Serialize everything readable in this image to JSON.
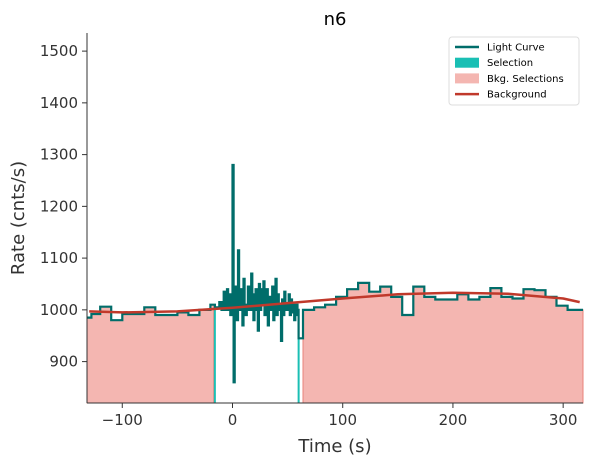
{
  "chart_data": {
    "type": "line",
    "title": "n6",
    "xlabel": "Time (s)",
    "ylabel": "Rate (cnts/s)",
    "xlim": [
      -132,
      318
    ],
    "ylim": [
      820,
      1535
    ],
    "xticks": [
      -100,
      0,
      100,
      200,
      300
    ],
    "xtick_labels": [
      "−100",
      "0",
      "100",
      "200",
      "300"
    ],
    "yticks": [
      900,
      1000,
      1100,
      1200,
      1300,
      1400,
      1500
    ],
    "ytick_labels": [
      "900",
      "1000",
      "1100",
      "1200",
      "1300",
      "1400",
      "1500"
    ],
    "grid": false,
    "legend_position": "top-right",
    "legend": [
      {
        "label": "Light Curve",
        "kind": "line",
        "color": "#006d6a"
      },
      {
        "label": "Selection",
        "kind": "patch",
        "color": "#1abfb4"
      },
      {
        "label": "Bkg. Selections",
        "kind": "patch",
        "color": "#f4b6b1"
      },
      {
        "label": "Background",
        "kind": "line",
        "color": "#c0392b"
      }
    ],
    "colors": {
      "light_curve": "#006d6a",
      "selection": "#1abfb4",
      "bkg_fill": "#f4b6b1",
      "bkg_edge": "#e8837a",
      "background": "#c0392b"
    },
    "light_curve": {
      "x": [
        -132,
        -128,
        -120,
        -110,
        -100,
        -90,
        -80,
        -70,
        -60,
        -50,
        -40,
        -30,
        -20,
        -16,
        -12,
        -10,
        -8,
        -6,
        -5,
        -4,
        -3,
        -2,
        -1,
        0,
        1,
        2,
        3,
        4,
        5,
        6,
        7,
        8,
        9,
        10,
        11,
        12,
        13,
        14,
        15,
        16,
        17,
        18,
        19,
        20,
        21,
        22,
        23,
        24,
        25,
        26,
        27,
        28,
        29,
        30,
        31,
        32,
        33,
        34,
        35,
        36,
        37,
        38,
        39,
        40,
        41,
        42,
        43,
        44,
        45,
        46,
        47,
        48,
        49,
        50,
        51,
        52,
        53,
        54,
        55,
        56,
        57,
        58,
        59,
        60,
        64,
        74,
        84,
        94,
        104,
        114,
        124,
        134,
        144,
        154,
        164,
        174,
        184,
        194,
        204,
        214,
        224,
        234,
        244,
        254,
        264,
        274,
        284,
        294,
        304,
        314,
        318
      ],
      "y": [
        985,
        992,
        1006,
        980,
        992,
        992,
        1005,
        990,
        990,
        995,
        990,
        1000,
        1010,
        1005,
        1015,
        1000,
        1035,
        1000,
        1040,
        1000,
        1030,
        990,
        1010,
        1280,
        860,
        990,
        1045,
        980,
        1115,
        1010,
        1000,
        1040,
        970,
        1060,
        1010,
        990,
        1000,
        1045,
        1020,
        1000,
        1070,
        1030,
        980,
        1020,
        1040,
        1000,
        960,
        1050,
        1000,
        1040,
        1010,
        1055,
        990,
        1020,
        1040,
        970,
        1025,
        1000,
        1000,
        1045,
        980,
        1010,
        1060,
        990,
        1030,
        1000,
        1010,
        940,
        1020,
        990,
        1035,
        1000,
        1010,
        1000,
        1030,
        990,
        1020,
        995,
        1010,
        980,
        990,
        1010,
        1000,
        945,
        1000,
        1005,
        1010,
        1025,
        1040,
        1052,
        1035,
        1045,
        1025,
        990,
        1045,
        1025,
        1020,
        1020,
        1030,
        1020,
        1025,
        1042,
        1025,
        1022,
        1040,
        1038,
        1025,
        1008,
        1000,
        1000,
        1000
      ]
    },
    "selection": {
      "x": [
        -16,
        60
      ],
      "color": "#1abfb4"
    },
    "bkg_selections": [
      [
        -132,
        -17
      ],
      [
        64,
        318
      ]
    ],
    "background": {
      "x": [
        -130,
        -100,
        -50,
        0,
        50,
        100,
        150,
        200,
        250,
        300,
        315
      ],
      "y": [
        997,
        995,
        997,
        1004,
        1013,
        1022,
        1030,
        1033,
        1031,
        1022,
        1015
      ]
    }
  }
}
